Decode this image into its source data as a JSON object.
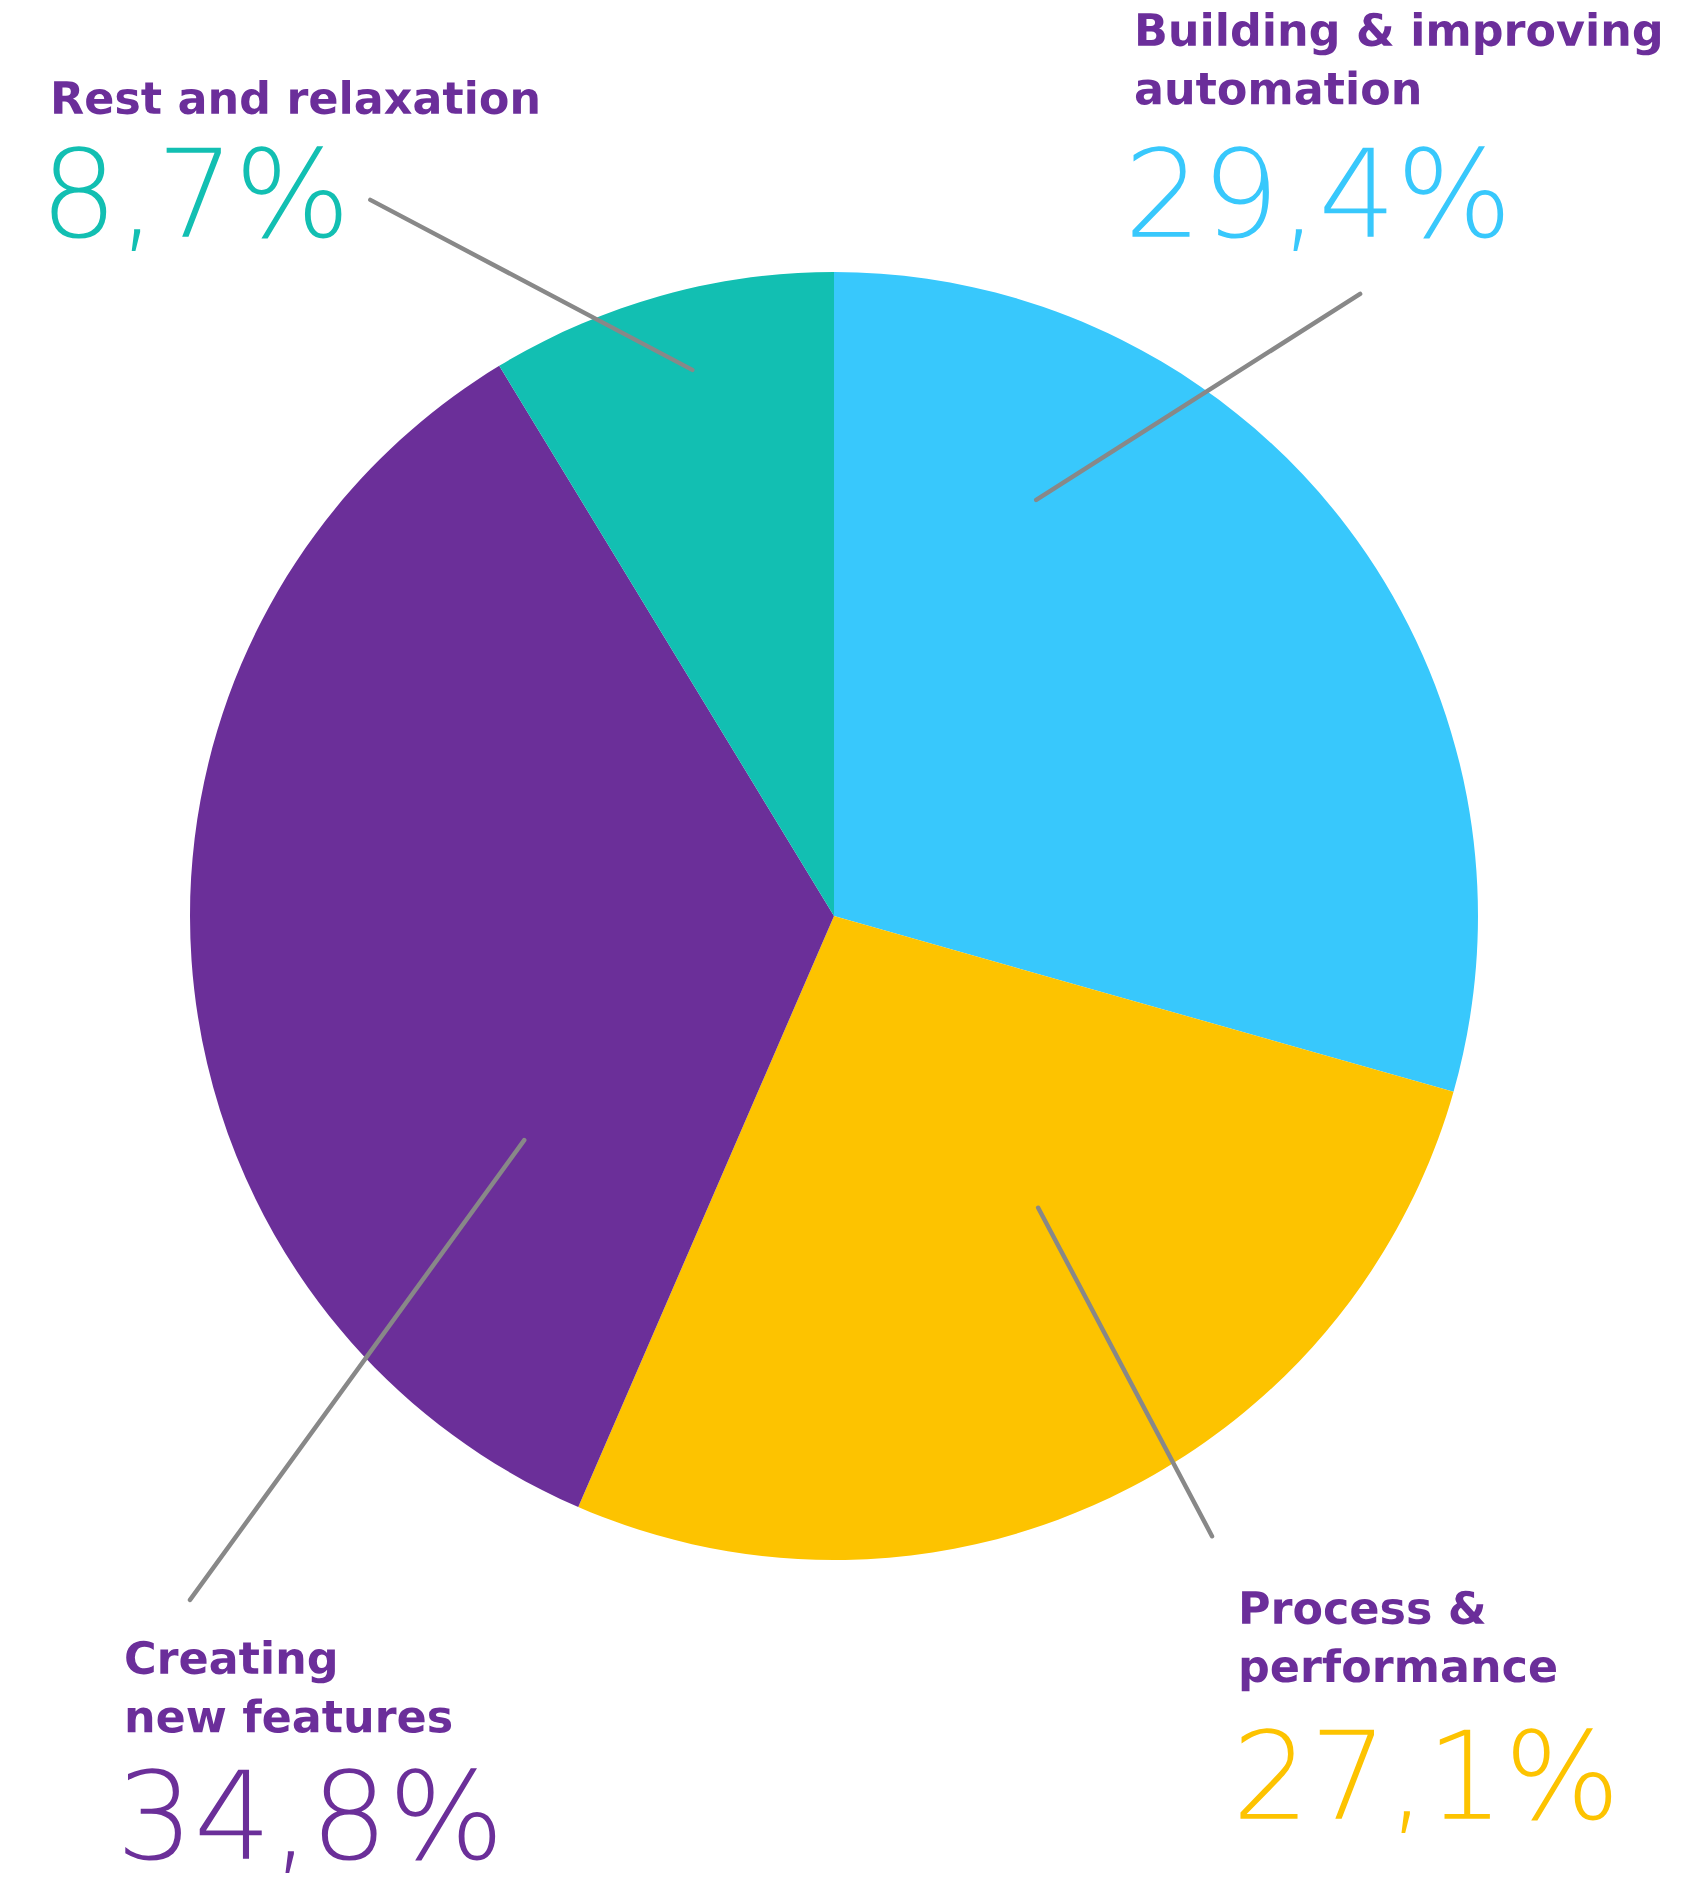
{
  "chart_data": {
    "type": "pie",
    "categories": [
      "Building & improving\nautomation",
      "Process &\nperformance",
      "Creating\nnew features",
      "Rest and relaxation"
    ],
    "values": [
      29.4,
      27.1,
      34.8,
      8.7
    ],
    "colors": [
      "#38c8fc",
      "#fdc300",
      "#6b2f99",
      "#12bfb2"
    ],
    "value_labels": [
      "29,4%",
      "27,1%",
      "34,8%",
      "8,7%"
    ]
  }
}
